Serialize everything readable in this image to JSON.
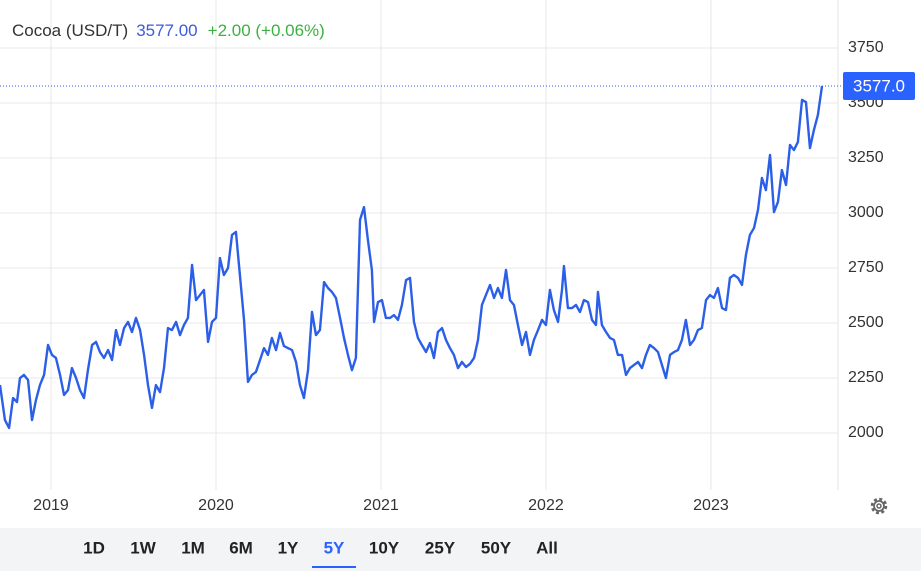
{
  "chart_data": {
    "type": "line",
    "title": "Cocoa (USD/T)",
    "price": "3577.00",
    "change": "+2.00 (+0.06%)",
    "last_label": "3577.0",
    "xlim": [
      2018.691,
      2023.77
    ],
    "xticks": [
      2019,
      2020,
      2021,
      2022,
      2023
    ],
    "ylim": [
      1741,
      3968
    ],
    "yticks": [
      2000,
      2250,
      2500,
      2750,
      3000,
      3250,
      3500,
      3750
    ],
    "grid": true,
    "ranges": [
      "1D",
      "1W",
      "1M",
      "6M",
      "1Y",
      "5Y",
      "10Y",
      "25Y",
      "50Y",
      "All"
    ],
    "active_range": "5Y",
    "series": [
      {
        "name": "Cocoa",
        "color": "#2c5fe8",
        "x": [
          2018.691,
          2018.721,
          2018.746,
          2018.77,
          2018.794,
          2018.812,
          2018.836,
          2018.861,
          2018.885,
          2018.909,
          2018.933,
          2018.958,
          2018.982,
          2019.006,
          2019.03,
          2019.055,
          2019.079,
          2019.103,
          2019.127,
          2019.152,
          2019.176,
          2019.2,
          2019.224,
          2019.249,
          2019.273,
          2019.297,
          2019.321,
          2019.346,
          2019.37,
          2019.394,
          2019.418,
          2019.443,
          2019.467,
          2019.491,
          2019.515,
          2019.54,
          2019.564,
          2019.588,
          2019.612,
          2019.636,
          2019.661,
          2019.685,
          2019.709,
          2019.733,
          2019.758,
          2019.782,
          2019.806,
          2019.83,
          2019.855,
          2019.879,
          2019.903,
          2019.927,
          2019.952,
          2019.976,
          2020.0,
          2020.024,
          2020.048,
          2020.073,
          2020.097,
          2020.121,
          2020.145,
          2020.17,
          2020.194,
          2020.218,
          2020.242,
          2020.267,
          2020.291,
          2020.315,
          2020.339,
          2020.364,
          2020.388,
          2020.412,
          2020.436,
          2020.461,
          2020.485,
          2020.509,
          2020.533,
          2020.558,
          2020.582,
          2020.606,
          2020.63,
          2020.655,
          2020.679,
          2020.703,
          2020.727,
          2020.752,
          2020.776,
          2020.8,
          2020.824,
          2020.848,
          2020.873,
          2020.897,
          2020.921,
          2020.945,
          2020.958,
          2020.982,
          2021.006,
          2021.03,
          2021.055,
          2021.079,
          2021.103,
          2021.127,
          2021.152,
          2021.176,
          2021.2,
          2021.224,
          2021.248,
          2021.273,
          2021.297,
          2021.321,
          2021.345,
          2021.37,
          2021.394,
          2021.418,
          2021.442,
          2021.467,
          2021.491,
          2021.515,
          2021.539,
          2021.564,
          2021.588,
          2021.612,
          2021.636,
          2021.661,
          2021.685,
          2021.709,
          2021.733,
          2021.758,
          2021.782,
          2021.806,
          2021.83,
          2021.855,
          2021.879,
          2021.903,
          2021.927,
          2021.952,
          2021.976,
          2022.0,
          2022.024,
          2022.048,
          2022.073,
          2022.097,
          2022.109,
          2022.133,
          2022.158,
          2022.182,
          2022.206,
          2022.23,
          2022.255,
          2022.279,
          2022.303,
          2022.315,
          2022.339,
          2022.364,
          2022.388,
          2022.412,
          2022.436,
          2022.461,
          2022.485,
          2022.509,
          2022.533,
          2022.558,
          2022.582,
          2022.606,
          2022.63,
          2022.655,
          2022.679,
          2022.703,
          2022.727,
          2022.752,
          2022.776,
          2022.8,
          2022.824,
          2022.848,
          2022.873,
          2022.897,
          2022.921,
          2022.945,
          2022.97,
          2022.994,
          2023.018,
          2023.042,
          2023.067,
          2023.091,
          2023.115,
          2023.139,
          2023.164,
          2023.188,
          2023.212,
          2023.236,
          2023.261,
          2023.285,
          2023.309,
          2023.333,
          2023.358,
          2023.382,
          2023.406,
          2023.43,
          2023.455,
          2023.479,
          2023.503,
          2023.527,
          2023.552,
          2023.576,
          2023.6,
          2023.624,
          2023.648,
          2023.673
        ],
        "values": [
          2218,
          2059,
          2023,
          2159,
          2141,
          2250,
          2264,
          2241,
          2059,
          2150,
          2218,
          2264,
          2400,
          2355,
          2341,
          2264,
          2173,
          2195,
          2295,
          2250,
          2195,
          2159,
          2286,
          2400,
          2414,
          2368,
          2341,
          2377,
          2332,
          2468,
          2400,
          2477,
          2505,
          2459,
          2523,
          2468,
          2355,
          2218,
          2114,
          2218,
          2186,
          2295,
          2477,
          2468,
          2505,
          2445,
          2491,
          2523,
          2764,
          2604,
          2627,
          2650,
          2414,
          2505,
          2523,
          2795,
          2718,
          2750,
          2900,
          2914,
          2718,
          2514,
          2232,
          2264,
          2277,
          2332,
          2386,
          2355,
          2432,
          2377,
          2455,
          2395,
          2386,
          2377,
          2323,
          2218,
          2159,
          2286,
          2550,
          2445,
          2468,
          2686,
          2659,
          2641,
          2614,
          2523,
          2432,
          2355,
          2286,
          2341,
          2968,
          3027,
          2877,
          2741,
          2505,
          2595,
          2604,
          2523,
          2523,
          2536,
          2514,
          2582,
          2695,
          2705,
          2505,
          2432,
          2400,
          2368,
          2409,
          2341,
          2459,
          2477,
          2423,
          2386,
          2355,
          2295,
          2323,
          2300,
          2314,
          2341,
          2423,
          2582,
          2627,
          2673,
          2614,
          2659,
          2614,
          2741,
          2604,
          2582,
          2491,
          2400,
          2459,
          2355,
          2423,
          2468,
          2514,
          2491,
          2650,
          2559,
          2505,
          2650,
          2759,
          2568,
          2568,
          2582,
          2550,
          2604,
          2595,
          2514,
          2491,
          2641,
          2491,
          2459,
          2432,
          2423,
          2355,
          2355,
          2264,
          2295,
          2309,
          2323,
          2295,
          2355,
          2400,
          2386,
          2368,
          2309,
          2250,
          2355,
          2368,
          2377,
          2423,
          2514,
          2400,
          2423,
          2468,
          2477,
          2604,
          2627,
          2614,
          2659,
          2568,
          2559,
          2705,
          2718,
          2705,
          2673,
          2809,
          2900,
          2932,
          3014,
          3159,
          3104,
          3264,
          3004,
          3050,
          3195,
          3127,
          3309,
          3286,
          3323,
          3514,
          3504,
          3295,
          3377,
          3445,
          3577
        ]
      }
    ]
  }
}
